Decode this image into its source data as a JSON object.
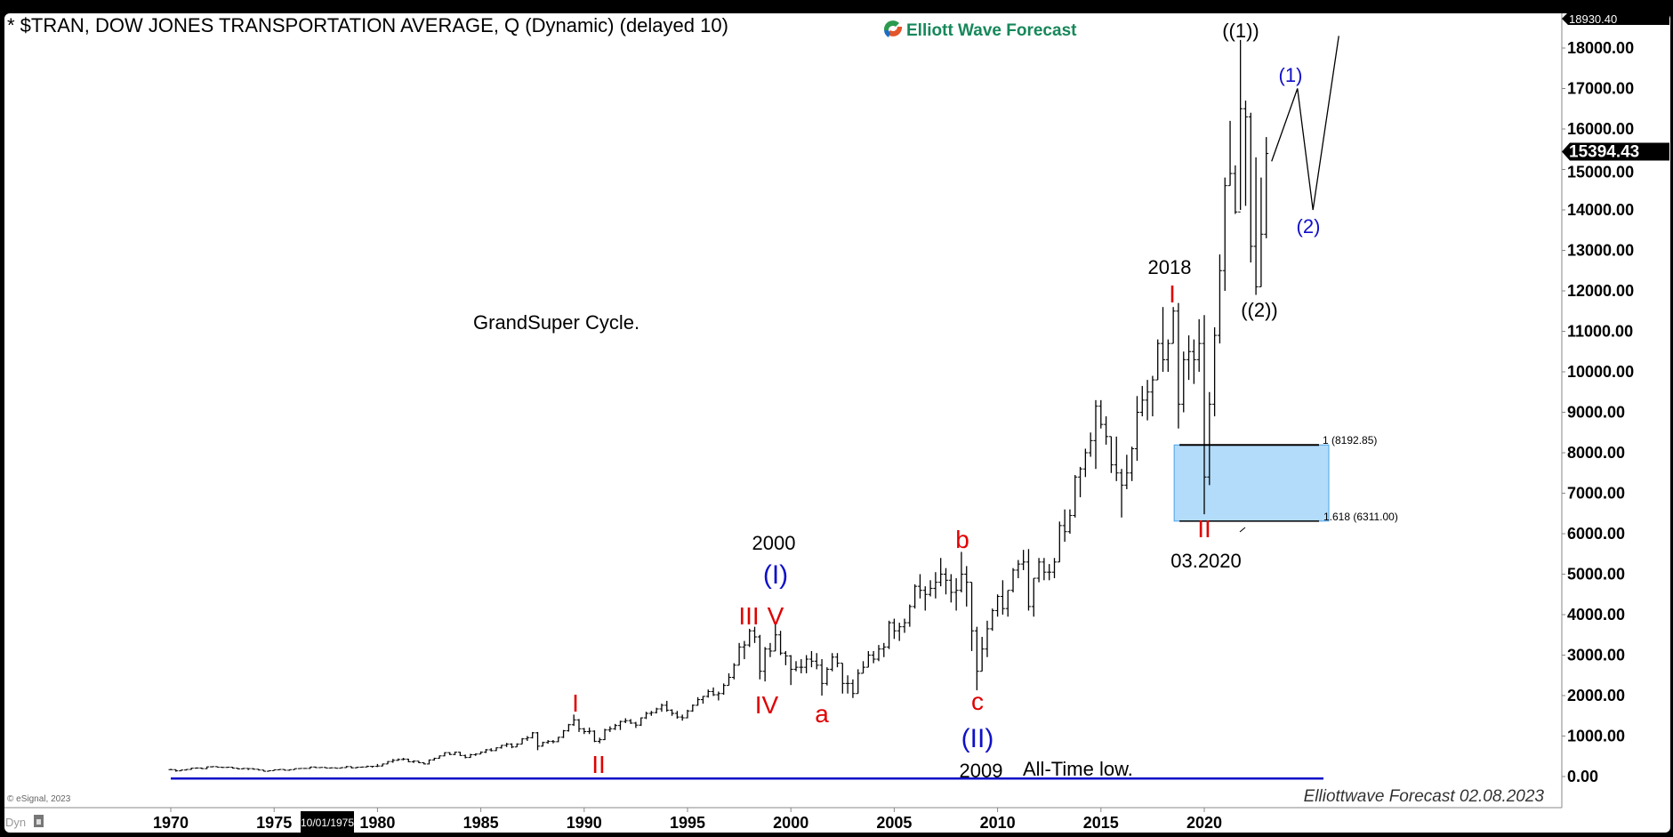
{
  "header": {
    "title": "* $TRAN, DOW JONES TRANSPORTATION AVERAGE, Q (Dynamic) (delayed 10)",
    "logo_text": "Elliott Wave Forecast"
  },
  "footer": {
    "copyright": "© eSignal, 2023",
    "dyn_label": "Dyn",
    "watermark": "Elliottwave Forecast 02.08.2023",
    "cursor_date": "10/01/1975"
  },
  "colors": {
    "red": "#e00000",
    "blue": "#1010c8",
    "fib_box": "#b3dcfb",
    "logo_green": "#16875a",
    "bars": "#000000"
  },
  "annotations": {
    "grand_super_cycle": "GrandSuper Cycle.",
    "all_time_low": "All-Time low.",
    "y2000": "2000",
    "y2009": "2009",
    "y2018": "2018",
    "d2020": "03.2020",
    "w1_1989": "I",
    "w2_1990": "II",
    "w3": "III",
    "w4": "IV",
    "w5": "V",
    "wI": "(I)",
    "wa": "a",
    "wb": "b",
    "wc": "c",
    "wII": "(II)",
    "cI_2018": "I",
    "cII_2020": "II",
    "ww1": "((1))",
    "ww2": "((2))",
    "p1": "(1)",
    "p2": "(2)",
    "fib_1": "1 (8192.85)",
    "fib_1618": "1.618 (6311.00)"
  },
  "chart_data": {
    "type": "ohlc",
    "title": "* $TRAN, DOW JONES TRANSPORTATION AVERAGE, Q (Dynamic) (delayed 10)",
    "ylim": [
      0,
      18930.4
    ],
    "xlim": [
      "1970",
      "2027"
    ],
    "y_ticks": [
      "0.00",
      "1000.00",
      "2000.00",
      "3000.00",
      "4000.00",
      "5000.00",
      "6000.00",
      "7000.00",
      "8000.00",
      "9000.00",
      "10000.00",
      "11000.00",
      "12000.00",
      "13000.00",
      "14000.00",
      "15000.00",
      "16000.00",
      "17000.00",
      "18000.00"
    ],
    "x_ticks": [
      "1970",
      "1975",
      "1980",
      "1985",
      "1990",
      "1995",
      "2000",
      "2005",
      "2010",
      "2015",
      "2020"
    ],
    "axis_high_label": "18930.40",
    "last_price_label": "15394.43",
    "last_price": 15394.43,
    "grid": false,
    "fib_zone": {
      "level_1": 8192.85,
      "level_1618": 6311.0,
      "from": "2018Q3",
      "to": "2025Q4"
    },
    "all_time_low_line": {
      "value": -50,
      "from": "1970Q1",
      "to": "2025Q4"
    },
    "projection": [
      [
        "2023Q1",
        15200
      ],
      [
        "2024Q2",
        17000
      ],
      [
        "2025Q1",
        14000
      ],
      [
        "2026Q2",
        18300
      ]
    ],
    "bar_fields": [
      "quarter",
      "high",
      "low",
      "close"
    ],
    "bars": [
      [
        "1970Q1",
        190,
        160,
        170
      ],
      [
        "1970Q2",
        175,
        120,
        140
      ],
      [
        "1970Q3",
        165,
        135,
        160
      ],
      [
        "1970Q4",
        180,
        150,
        175
      ],
      [
        "1971Q1",
        215,
        170,
        205
      ],
      [
        "1971Q2",
        225,
        195,
        210
      ],
      [
        "1971Q3",
        220,
        185,
        195
      ],
      [
        "1971Q4",
        245,
        185,
        240
      ],
      [
        "1972Q1",
        250,
        225,
        245
      ],
      [
        "1972Q2",
        250,
        225,
        230
      ],
      [
        "1972Q3",
        235,
        210,
        225
      ],
      [
        "1972Q4",
        240,
        215,
        230
      ],
      [
        "1973Q1",
        235,
        195,
        205
      ],
      [
        "1973Q2",
        210,
        175,
        190
      ],
      [
        "1973Q3",
        210,
        180,
        200
      ],
      [
        "1973Q4",
        205,
        160,
        195
      ],
      [
        "1974Q1",
        205,
        170,
        180
      ],
      [
        "1974Q2",
        185,
        150,
        160
      ],
      [
        "1974Q3",
        165,
        125,
        130
      ],
      [
        "1974Q4",
        150,
        125,
        145
      ],
      [
        "1975Q1",
        170,
        145,
        165
      ],
      [
        "1975Q2",
        180,
        155,
        175
      ],
      [
        "1975Q3",
        180,
        150,
        155
      ],
      [
        "1975Q4",
        175,
        145,
        170
      ],
      [
        "1976Q1",
        200,
        170,
        195
      ],
      [
        "1976Q2",
        205,
        185,
        200
      ],
      [
        "1976Q3",
        210,
        190,
        200
      ],
      [
        "1976Q4",
        240,
        190,
        235
      ],
      [
        "1977Q1",
        245,
        215,
        220
      ],
      [
        "1977Q2",
        230,
        210,
        225
      ],
      [
        "1977Q3",
        230,
        205,
        210
      ],
      [
        "1977Q4",
        225,
        200,
        215
      ],
      [
        "1978Q1",
        215,
        195,
        205
      ],
      [
        "1978Q2",
        230,
        205,
        220
      ],
      [
        "1978Q3",
        260,
        215,
        245
      ],
      [
        "1978Q4",
        245,
        200,
        215
      ],
      [
        "1979Q1",
        235,
        205,
        230
      ],
      [
        "1979Q2",
        245,
        220,
        235
      ],
      [
        "1979Q3",
        270,
        230,
        250
      ],
      [
        "1979Q4",
        260,
        220,
        250
      ],
      [
        "1980Q1",
        310,
        235,
        260
      ],
      [
        "1980Q2",
        320,
        250,
        310
      ],
      [
        "1980Q3",
        380,
        305,
        370
      ],
      [
        "1980Q4",
        435,
        340,
        400
      ],
      [
        "1981Q1",
        445,
        385,
        420
      ],
      [
        "1981Q2",
        460,
        400,
        430
      ],
      [
        "1981Q3",
        440,
        355,
        365
      ],
      [
        "1981Q4",
        400,
        335,
        380
      ],
      [
        "1982Q1",
        385,
        330,
        340
      ],
      [
        "1982Q2",
        350,
        300,
        310
      ],
      [
        "1982Q3",
        420,
        300,
        410
      ],
      [
        "1982Q4",
        465,
        395,
        450
      ],
      [
        "1983Q1",
        520,
        440,
        510
      ],
      [
        "1983Q2",
        600,
        500,
        590
      ],
      [
        "1983Q3",
        600,
        530,
        545
      ],
      [
        "1983Q4",
        615,
        530,
        600
      ],
      [
        "1984Q1",
        610,
        510,
        520
      ],
      [
        "1984Q2",
        540,
        450,
        470
      ],
      [
        "1984Q3",
        560,
        460,
        540
      ],
      [
        "1984Q4",
        570,
        510,
        555
      ],
      [
        "1985Q1",
        620,
        550,
        600
      ],
      [
        "1985Q2",
        680,
        580,
        660
      ],
      [
        "1985Q3",
        700,
        620,
        640
      ],
      [
        "1985Q4",
        720,
        630,
        710
      ],
      [
        "1986Q1",
        780,
        690,
        770
      ],
      [
        "1986Q2",
        830,
        730,
        800
      ],
      [
        "1986Q3",
        820,
        700,
        730
      ],
      [
        "1986Q4",
        820,
        730,
        800
      ],
      [
        "1987Q1",
        950,
        800,
        930
      ],
      [
        "1987Q2",
        1000,
        880,
        960
      ],
      [
        "1987Q3",
        1100,
        940,
        1080
      ],
      [
        "1987Q4",
        1100,
        650,
        750
      ],
      [
        "1988Q1",
        860,
        740,
        840
      ],
      [
        "1988Q2",
        900,
        810,
        870
      ],
      [
        "1988Q3",
        900,
        820,
        860
      ],
      [
        "1988Q4",
        980,
        850,
        970
      ],
      [
        "1989Q1",
        1150,
        950,
        1130
      ],
      [
        "1989Q2",
        1300,
        1110,
        1280
      ],
      [
        "1989Q3",
        1530,
        1250,
        1400
      ],
      [
        "1989Q4",
        1420,
        1100,
        1180
      ],
      [
        "1990Q1",
        1200,
        1050,
        1110
      ],
      [
        "1990Q2",
        1210,
        1050,
        1120
      ],
      [
        "1990Q3",
        1140,
        850,
        870
      ],
      [
        "1990Q4",
        960,
        820,
        910
      ],
      [
        "1991Q1",
        1180,
        900,
        1150
      ],
      [
        "1991Q2",
        1240,
        1100,
        1180
      ],
      [
        "1991Q3",
        1300,
        1150,
        1260
      ],
      [
        "1991Q4",
        1380,
        1150,
        1360
      ],
      [
        "1992Q1",
        1440,
        1320,
        1380
      ],
      [
        "1992Q2",
        1420,
        1300,
        1320
      ],
      [
        "1992Q3",
        1350,
        1200,
        1270
      ],
      [
        "1992Q4",
        1460,
        1250,
        1450
      ],
      [
        "1993Q1",
        1600,
        1420,
        1560
      ],
      [
        "1993Q2",
        1620,
        1500,
        1580
      ],
      [
        "1993Q3",
        1700,
        1560,
        1670
      ],
      [
        "1993Q4",
        1800,
        1600,
        1760
      ],
      [
        "1994Q1",
        1870,
        1600,
        1640
      ],
      [
        "1994Q2",
        1660,
        1500,
        1560
      ],
      [
        "1994Q3",
        1620,
        1430,
        1470
      ],
      [
        "1994Q4",
        1530,
        1380,
        1450
      ],
      [
        "1995Q1",
        1650,
        1440,
        1620
      ],
      [
        "1995Q2",
        1780,
        1600,
        1760
      ],
      [
        "1995Q3",
        1960,
        1750,
        1900
      ],
      [
        "1995Q4",
        1990,
        1800,
        1980
      ],
      [
        "1996Q1",
        2150,
        1950,
        2100
      ],
      [
        "1996Q2",
        2200,
        1990,
        2020
      ],
      [
        "1996Q3",
        2100,
        1880,
        2050
      ],
      [
        "1996Q4",
        2300,
        2020,
        2250
      ],
      [
        "1997Q1",
        2550,
        2250,
        2450
      ],
      [
        "1997Q2",
        2800,
        2400,
        2750
      ],
      [
        "1997Q3",
        3300,
        2750,
        3200
      ],
      [
        "1997Q4",
        3350,
        2900,
        3250
      ],
      [
        "1998Q1",
        3650,
        3200,
        3600
      ],
      [
        "1998Q2",
        3700,
        3300,
        3450
      ],
      [
        "1998Q3",
        3500,
        2400,
        2600
      ],
      [
        "1998Q4",
        3200,
        2350,
        3150
      ],
      [
        "1999Q1",
        3300,
        2950,
        3100
      ],
      [
        "1999Q2",
        3800,
        3100,
        3500
      ],
      [
        "1999Q3",
        3600,
        3000,
        3050
      ],
      [
        "1999Q4",
        3100,
        2750,
        2980
      ],
      [
        "2000Q1",
        3000,
        2260,
        2650
      ],
      [
        "2000Q2",
        2850,
        2600,
        2700
      ],
      [
        "2000Q3",
        2900,
        2550,
        2700
      ],
      [
        "2000Q4",
        3000,
        2550,
        2900
      ],
      [
        "2001Q1",
        3100,
        2700,
        2850
      ],
      [
        "2001Q2",
        3050,
        2650,
        2750
      ],
      [
        "2001Q3",
        2900,
        2000,
        2300
      ],
      [
        "2001Q4",
        2700,
        2250,
        2650
      ],
      [
        "2002Q1",
        3050,
        2600,
        2950
      ],
      [
        "2002Q2",
        3050,
        2700,
        2800
      ],
      [
        "2002Q3",
        2800,
        2050,
        2300
      ],
      [
        "2002Q4",
        2500,
        2050,
        2300
      ],
      [
        "2003Q1",
        2400,
        1940,
        2050
      ],
      [
        "2003Q2",
        2650,
        2050,
        2550
      ],
      [
        "2003Q3",
        2850,
        2550,
        2700
      ],
      [
        "2003Q4",
        3100,
        2700,
        3000
      ],
      [
        "2004Q1",
        3100,
        2800,
        2900
      ],
      [
        "2004Q2",
        3250,
        2850,
        3150
      ],
      [
        "2004Q3",
        3300,
        2950,
        3200
      ],
      [
        "2004Q4",
        3850,
        3150,
        3800
      ],
      [
        "2005Q1",
        3900,
        3400,
        3600
      ],
      [
        "2005Q2",
        3800,
        3350,
        3700
      ],
      [
        "2005Q3",
        3900,
        3550,
        3800
      ],
      [
        "2005Q4",
        4250,
        3700,
        4200
      ],
      [
        "2006Q1",
        4750,
        4150,
        4700
      ],
      [
        "2006Q2",
        5000,
        4400,
        4600
      ],
      [
        "2006Q3",
        4700,
        4100,
        4500
      ],
      [
        "2006Q4",
        4850,
        4450,
        4650
      ],
      [
        "2007Q1",
        5050,
        4400,
        4800
      ],
      [
        "2007Q2",
        5400,
        4700,
        5000
      ],
      [
        "2007Q3",
        5150,
        4500,
        4850
      ],
      [
        "2007Q4",
        5000,
        4300,
        4550
      ],
      [
        "2008Q1",
        4900,
        4100,
        4600
      ],
      [
        "2008Q2",
        5550,
        4550,
        5000
      ],
      [
        "2008Q3",
        5200,
        4200,
        4800
      ],
      [
        "2008Q4",
        4800,
        3100,
        3600
      ],
      [
        "2009Q1",
        3700,
        2130,
        2600
      ],
      [
        "2009Q2",
        3450,
        2600,
        3150
      ],
      [
        "2009Q3",
        3850,
        2950,
        3650
      ],
      [
        "2009Q4",
        4150,
        3600,
        4100
      ],
      [
        "2010Q1",
        4500,
        3950,
        4450
      ],
      [
        "2010Q2",
        4850,
        4000,
        4150
      ],
      [
        "2010Q3",
        4600,
        3950,
        4600
      ],
      [
        "2010Q4",
        5150,
        4550,
        5100
      ],
      [
        "2011Q1",
        5350,
        4900,
        5250
      ],
      [
        "2011Q2",
        5600,
        5100,
        5300
      ],
      [
        "2011Q3",
        5620,
        4100,
        4200
      ],
      [
        "2011Q4",
        4900,
        3950,
        4900
      ],
      [
        "2012Q1",
        5400,
        4800,
        5300
      ],
      [
        "2012Q2",
        5400,
        4850,
        5050
      ],
      [
        "2012Q3",
        5250,
        4850,
        5050
      ],
      [
        "2012Q4",
        5400,
        4900,
        5300
      ],
      [
        "2013Q1",
        6300,
        5300,
        6200
      ],
      [
        "2013Q2",
        6600,
        5800,
        6050
      ],
      [
        "2013Q3",
        6600,
        6000,
        6450
      ],
      [
        "2013Q4",
        7450,
        6400,
        7400
      ],
      [
        "2014Q1",
        7650,
        6900,
        7600
      ],
      [
        "2014Q2",
        8100,
        7400,
        8000
      ],
      [
        "2014Q3",
        8500,
        7900,
        8300
      ],
      [
        "2014Q4",
        9300,
        7600,
        9150
      ],
      [
        "2015Q1",
        9300,
        8600,
        8700
      ],
      [
        "2015Q2",
        8900,
        8200,
        8400
      ],
      [
        "2015Q3",
        8400,
        7500,
        7700
      ],
      [
        "2015Q4",
        8400,
        7300,
        7500
      ],
      [
        "2016Q1",
        7600,
        6400,
        7200
      ],
      [
        "2016Q2",
        7950,
        7100,
        7500
      ],
      [
        "2016Q3",
        8150,
        7300,
        8100
      ],
      [
        "2016Q4",
        9400,
        7800,
        9000
      ],
      [
        "2017Q1",
        9650,
        8900,
        9300
      ],
      [
        "2017Q2",
        9800,
        8800,
        9500
      ],
      [
        "2017Q3",
        9900,
        8900,
        9800
      ],
      [
        "2017Q4",
        10800,
        9800,
        10700
      ],
      [
        "2018Q1",
        11600,
        10000,
        10300
      ],
      [
        "2018Q2",
        10800,
        10000,
        10700
      ],
      [
        "2018Q3",
        11600,
        10700,
        11500
      ],
      [
        "2018Q4",
        11700,
        8600,
        9200
      ],
      [
        "2019Q1",
        10500,
        9000,
        10300
      ],
      [
        "2019Q2",
        10900,
        9800,
        10500
      ],
      [
        "2019Q3",
        10800,
        9700,
        10300
      ],
      [
        "2019Q4",
        11300,
        10000,
        10700
      ],
      [
        "2020Q1",
        11400,
        6480,
        7400
      ],
      [
        "2020Q2",
        9500,
        7200,
        9200
      ],
      [
        "2020Q3",
        11100,
        8900,
        10900
      ],
      [
        "2020Q4",
        12900,
        10700,
        12500
      ],
      [
        "2021Q1",
        14800,
        12000,
        14600
      ],
      [
        "2021Q2",
        16200,
        14600,
        14900
      ],
      [
        "2021Q3",
        15100,
        13900,
        13950
      ],
      [
        "2021Q4",
        18200,
        14000,
        16500
      ],
      [
        "2022Q1",
        16700,
        14100,
        16300
      ],
      [
        "2022Q2",
        16400,
        12700,
        13100
      ],
      [
        "2022Q3",
        15300,
        11900,
        12100
      ],
      [
        "2022Q4",
        14800,
        12100,
        13400
      ],
      [
        "2023Q1",
        15800,
        13300,
        15394.43
      ]
    ]
  }
}
